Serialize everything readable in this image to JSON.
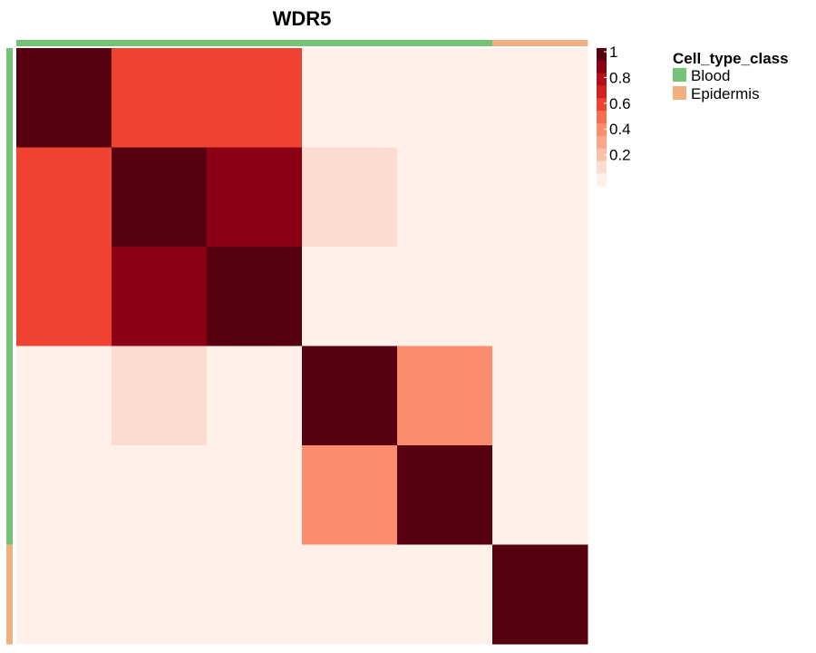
{
  "chart_data": {
    "type": "heatmap",
    "title": "WDR5",
    "rows": 6,
    "cols": 6,
    "values": [
      [
        1.0,
        0.6,
        0.6,
        0.0,
        0.0,
        0.0
      ],
      [
        0.6,
        1.0,
        0.9,
        0.1,
        0.0,
        0.0
      ],
      [
        0.6,
        0.9,
        1.0,
        0.0,
        0.0,
        0.0
      ],
      [
        0.0,
        0.1,
        0.0,
        1.0,
        0.4,
        0.0
      ],
      [
        0.0,
        0.0,
        0.0,
        0.4,
        1.0,
        0.0
      ],
      [
        0.0,
        0.0,
        0.0,
        0.0,
        0.0,
        1.0
      ]
    ],
    "cell_type_class": [
      "Blood",
      "Blood",
      "Blood",
      "Blood",
      "Blood",
      "Epidermis"
    ],
    "color_scale": {
      "palette": "Reds",
      "range": [
        0,
        1
      ],
      "ticks": [
        "1",
        "0.8",
        "0.6",
        "0.4",
        "0.2"
      ],
      "bins": [
        {
          "max": 0.05,
          "color": "#fff0ea"
        },
        {
          "max": 0.15,
          "color": "#fcdcd0"
        },
        {
          "max": 0.25,
          "color": "#fcbfa8"
        },
        {
          "max": 0.35,
          "color": "#fca588"
        },
        {
          "max": 0.45,
          "color": "#fb8c6e"
        },
        {
          "max": 0.55,
          "color": "#f66e52"
        },
        {
          "max": 0.65,
          "color": "#f04230"
        },
        {
          "max": 0.75,
          "color": "#d32020"
        },
        {
          "max": 0.85,
          "color": "#b31019"
        },
        {
          "max": 0.95,
          "color": "#8b0014"
        },
        {
          "max": 1.01,
          "color": "#560010"
        }
      ]
    },
    "annotation_legend": {
      "title": "Cell_type_class",
      "items": [
        {
          "label": "Blood",
          "color": "#73c476"
        },
        {
          "label": "Epidermis",
          "color": "#f0b07f"
        }
      ]
    }
  }
}
